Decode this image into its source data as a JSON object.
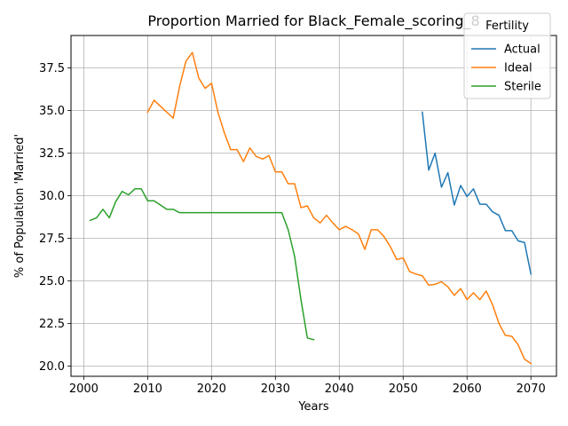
{
  "chart_data": {
    "type": "line",
    "title": "Proportion Married for Black_Female_scoring_8",
    "xlabel": "Years",
    "ylabel": "% of Population 'Married'",
    "xlim": [
      1998,
      2074
    ],
    "ylim": [
      19.4,
      39.4
    ],
    "xticks": [
      2000,
      2010,
      2020,
      2030,
      2040,
      2050,
      2060,
      2070
    ],
    "yticks": [
      20.0,
      22.5,
      25.0,
      27.5,
      30.0,
      32.5,
      35.0,
      37.5
    ],
    "grid": true,
    "legend": {
      "title": "Fertility",
      "position": "top-right"
    },
    "series": [
      {
        "name": "Actual",
        "color": "#1f77b4",
        "x": [
          2053,
          2054,
          2055,
          2056,
          2057,
          2058,
          2059,
          2060,
          2061,
          2062,
          2063,
          2064,
          2065,
          2066,
          2067,
          2068,
          2069,
          2070
        ],
        "y": [
          34.9,
          31.5,
          32.5,
          30.5,
          31.35,
          29.45,
          30.6,
          29.95,
          30.4,
          29.5,
          29.5,
          29.05,
          28.85,
          27.95,
          27.95,
          27.35,
          27.25,
          25.4
        ]
      },
      {
        "name": "Ideal",
        "color": "#ff7f0e",
        "x": [
          2010,
          2011,
          2012,
          2013,
          2014,
          2015,
          2016,
          2017,
          2018,
          2019,
          2020,
          2021,
          2022,
          2023,
          2024,
          2025,
          2026,
          2027,
          2028,
          2029,
          2030,
          2031,
          2032,
          2033,
          2034,
          2035,
          2036,
          2037,
          2038,
          2039,
          2040,
          2041,
          2042,
          2043,
          2044,
          2045,
          2046,
          2047,
          2048,
          2049,
          2050,
          2051,
          2052,
          2053,
          2054,
          2055,
          2056,
          2057,
          2058,
          2059,
          2060,
          2061,
          2062,
          2063,
          2064,
          2065,
          2066,
          2067,
          2068,
          2069,
          2070
        ],
        "y": [
          34.9,
          35.6,
          35.25,
          34.9,
          34.55,
          36.4,
          37.9,
          38.4,
          36.9,
          36.3,
          36.6,
          34.9,
          33.7,
          32.7,
          32.7,
          32.0,
          32.8,
          32.3,
          32.15,
          32.35,
          31.4,
          31.4,
          30.7,
          30.7,
          29.3,
          29.4,
          28.7,
          28.4,
          28.85,
          28.4,
          28.0,
          28.2,
          28.0,
          27.75,
          26.85,
          28.0,
          28.0,
          27.6,
          27.0,
          26.25,
          26.35,
          25.55,
          25.4,
          25.3,
          24.75,
          24.8,
          24.95,
          24.65,
          24.15,
          24.55,
          23.9,
          24.3,
          23.9,
          24.4,
          23.6,
          22.5,
          21.8,
          21.75,
          21.25,
          20.4,
          20.15
        ]
      },
      {
        "name": "Sterile",
        "color": "#2ca02c",
        "x": [
          2001,
          2002,
          2003,
          2004,
          2005,
          2006,
          2007,
          2008,
          2009,
          2010,
          2011,
          2012,
          2013,
          2014,
          2015,
          2016,
          2017,
          2018,
          2019,
          2020,
          2021,
          2022,
          2023,
          2024,
          2025,
          2026,
          2027,
          2028,
          2029,
          2030,
          2031,
          2032,
          2033,
          2034,
          2035,
          2036
        ],
        "y": [
          28.55,
          28.7,
          29.2,
          28.7,
          29.65,
          30.25,
          30.05,
          30.4,
          30.4,
          29.7,
          29.7,
          29.45,
          29.2,
          29.2,
          29.0,
          29.0,
          29.0,
          29.0,
          29.0,
          29.0,
          29.0,
          29.0,
          29.0,
          29.0,
          29.0,
          29.0,
          29.0,
          29.0,
          29.0,
          29.0,
          29.0,
          28.0,
          26.45,
          23.9,
          21.65,
          21.55
        ]
      }
    ]
  }
}
